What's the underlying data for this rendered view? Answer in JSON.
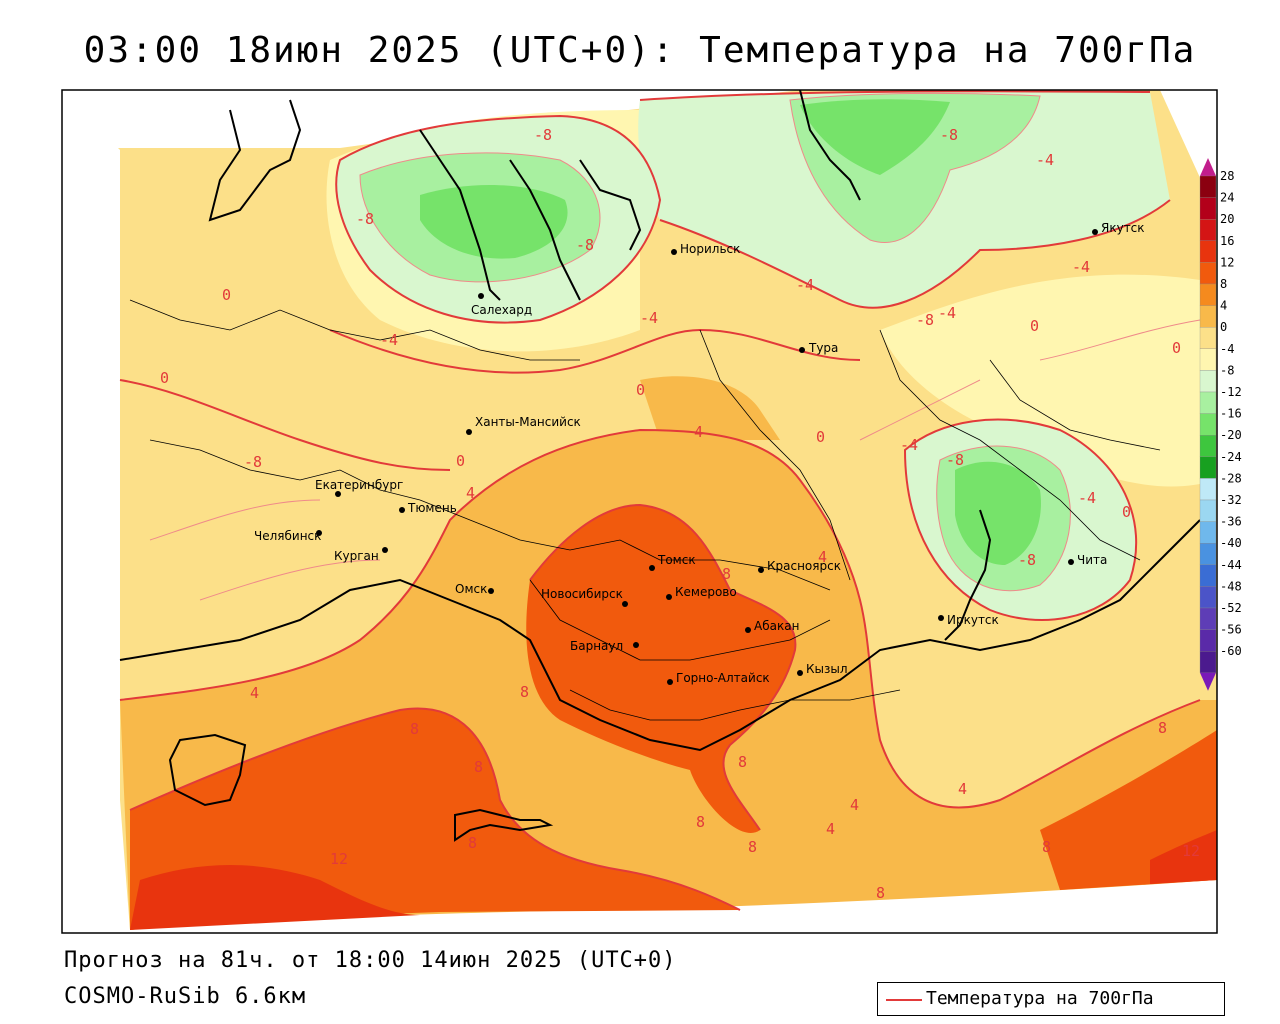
{
  "title": "03:00 18июн 2025 (UTC+0): Температура на 700гПа",
  "forecast_info": "Прогноз на 81ч. от 18:00 14июн 2025 (UTC+0)",
  "model_name": "COSMO-RuSib 6.6км",
  "legend": {
    "label": "Температура на 700гПа",
    "line_color": "#e23a3a"
  },
  "colorbar": {
    "ticks": [
      "28",
      "24",
      "20",
      "16",
      "12",
      "8",
      "4",
      "0",
      "-4",
      "-8",
      "-12",
      "-16",
      "-20",
      "-24",
      "-28",
      "-32",
      "-36",
      "-40",
      "-44",
      "-48",
      "-52",
      "-56",
      "-60"
    ],
    "colors": [
      "#8b0010",
      "#b3001a",
      "#d41515",
      "#e8340e",
      "#f15a0d",
      "#f58a1e",
      "#f8b94a",
      "#fce089",
      "#fff6b0",
      "#d9f7cf",
      "#a8f0a0",
      "#76e36a",
      "#3ec63e",
      "#18a020",
      "#bfe9f7",
      "#9bd7f1",
      "#6fb8ec",
      "#4a92e0",
      "#3a6dd4",
      "#4b54c8",
      "#5e3db6",
      "#5a2aa8",
      "#4b1a8e"
    ]
  },
  "cities": [
    {
      "name": "Якутск"
    },
    {
      "name": "Норильск"
    },
    {
      "name": "Салехард"
    },
    {
      "name": "Тура"
    },
    {
      "name": "Ханты-Мансийск"
    },
    {
      "name": "Екатеринбург"
    },
    {
      "name": "Тюмень"
    },
    {
      "name": "Челябинск"
    },
    {
      "name": "Курган"
    },
    {
      "name": "Омск"
    },
    {
      "name": "Новосибирск"
    },
    {
      "name": "Томск"
    },
    {
      "name": "Кемерово"
    },
    {
      "name": "Красноярск"
    },
    {
      "name": "Абакан"
    },
    {
      "name": "Барнаул"
    },
    {
      "name": "Горно-Алтайск"
    },
    {
      "name": "Кызыл"
    },
    {
      "name": "Иркутск"
    },
    {
      "name": "Чита"
    }
  ],
  "isoline_labels": [
    "-8",
    "-8",
    "-8",
    "-8",
    "-8",
    "-4",
    "-4",
    "-4",
    "-4",
    "-8",
    "-4",
    "0",
    "0",
    "0",
    "0",
    "0",
    "0",
    "0",
    "-4",
    "-4",
    "-8",
    "-4",
    "0",
    "-8",
    "4",
    "4",
    "4",
    "4",
    "8",
    "8",
    "8",
    "8",
    "8",
    "8",
    "8",
    "8",
    "4",
    "4",
    "4",
    "8",
    "8",
    "12",
    "8",
    "12"
  ]
}
